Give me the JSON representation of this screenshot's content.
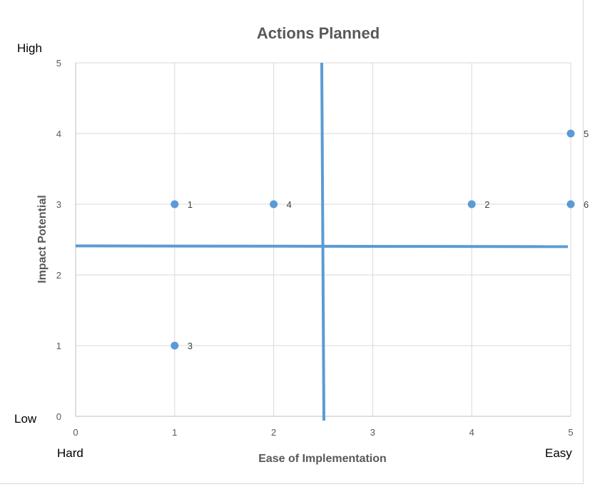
{
  "chart_data": {
    "type": "scatter",
    "title": "Actions Planned",
    "xlabel": "Ease of Implementation",
    "ylabel": "Impact Potential",
    "xlim": [
      0,
      5
    ],
    "ylim": [
      0,
      5
    ],
    "x_ticks": [
      "0",
      "1",
      "2",
      "3",
      "4",
      "5"
    ],
    "y_ticks": [
      "0",
      "1",
      "2",
      "3",
      "4",
      "5"
    ],
    "grid": "vertical and horizontal",
    "points": [
      {
        "label": "1",
        "x": 1,
        "y": 3
      },
      {
        "label": "4",
        "x": 2,
        "y": 3
      },
      {
        "label": "2",
        "x": 4,
        "y": 3
      },
      {
        "label": "6",
        "x": 5,
        "y": 3
      },
      {
        "label": "5",
        "x": 5,
        "y": 4
      },
      {
        "label": "3",
        "x": 1,
        "y": 1
      }
    ],
    "quadrant_lines": {
      "x": 2.5,
      "y": 2.4
    },
    "corner_labels": {
      "y_high": "High",
      "y_low": "Low",
      "x_low": "Hard",
      "x_high": "Easy"
    },
    "colors": {
      "point": "#5b9bd5",
      "quadrant_line": "#5b9bd5",
      "grid": "#d9d9d9",
      "axis": "#bfbfbf"
    }
  }
}
